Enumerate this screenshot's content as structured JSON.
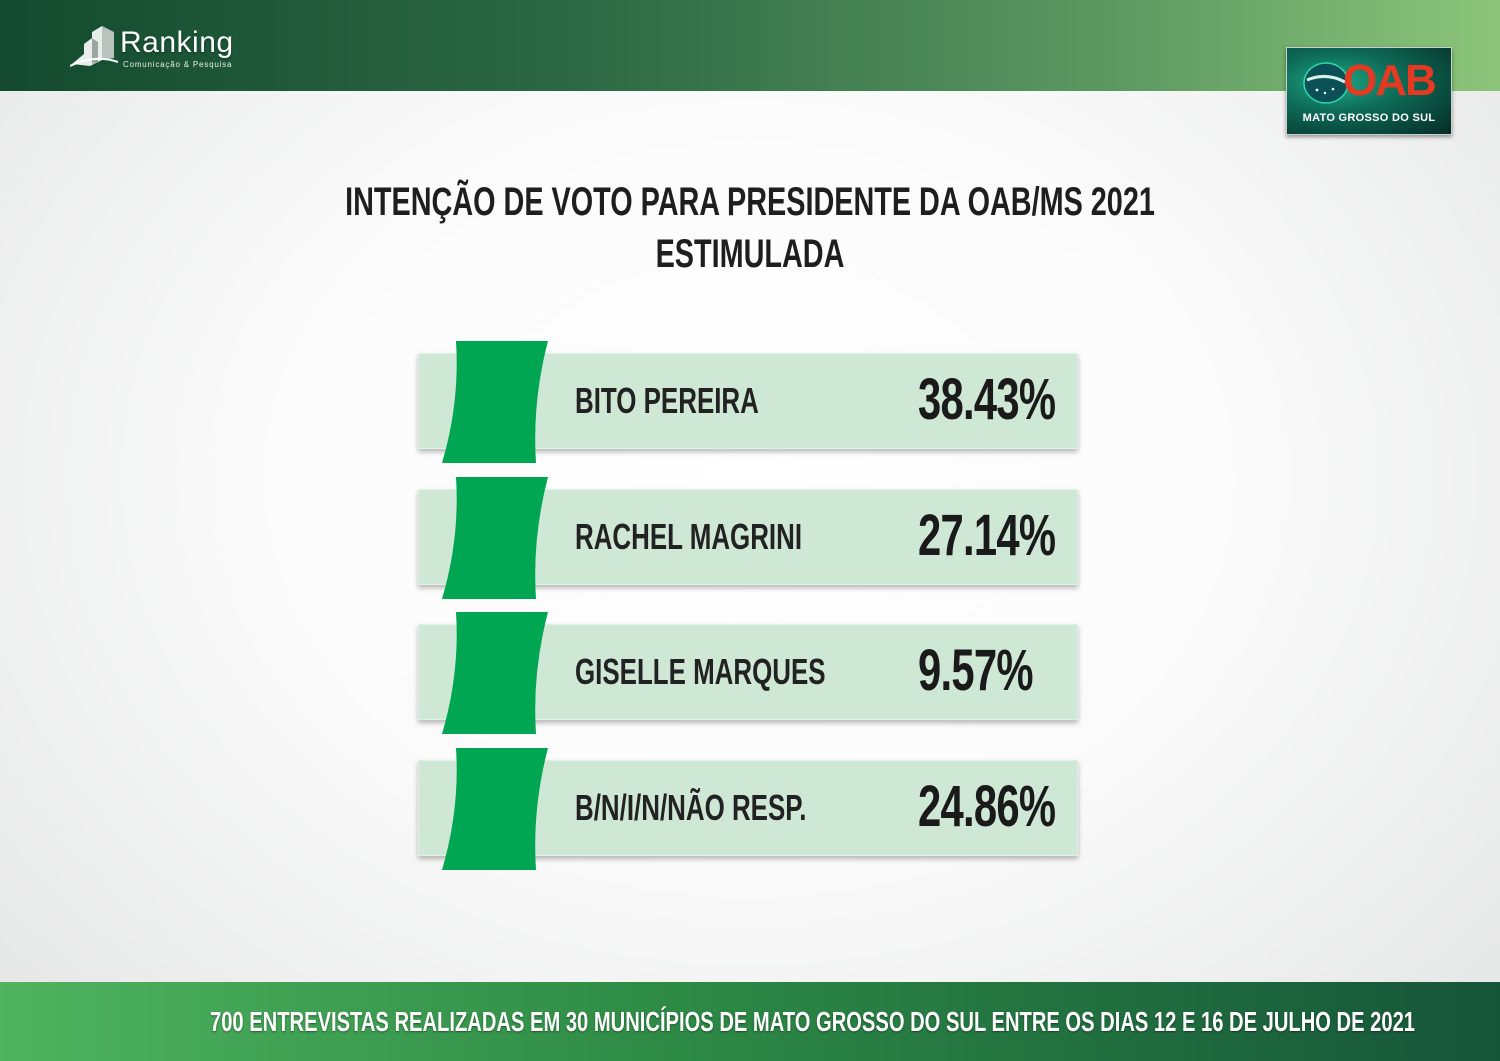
{
  "brand": {
    "name": "Ranking",
    "tagline": "Comunicação & Pesquisa"
  },
  "partner_logo": {
    "letters": "OAB",
    "caption": "MATO GROSSO DO SUL"
  },
  "colors": {
    "accent": "#00a651",
    "row_background": "#cfe8d6",
    "logo_red": "#e53a22"
  },
  "chart_data": {
    "type": "bar",
    "title": "INTENÇÃO DE VOTO PARA PRESIDENTE DA OAB/MS 2021",
    "subtitle": "ESTIMULADA",
    "categories": [
      "BITO PEREIRA",
      "RACHEL MAGRINI",
      "GISELLE MARQUES",
      "B/N/I/N/NÃO RESP."
    ],
    "values": [
      38.43,
      27.14,
      9.57,
      24.86
    ],
    "labels": [
      "38.43%",
      "27.14%",
      "9.57%",
      "24.86%"
    ],
    "unit": "%"
  },
  "footer": {
    "text": "700 ENTREVISTAS REALIZADAS EM 30 MUNICÍPIOS DE MATO GROSSO DO SUL ENTRE OS DIAS 12 E 16 DE JULHO DE 2021"
  }
}
